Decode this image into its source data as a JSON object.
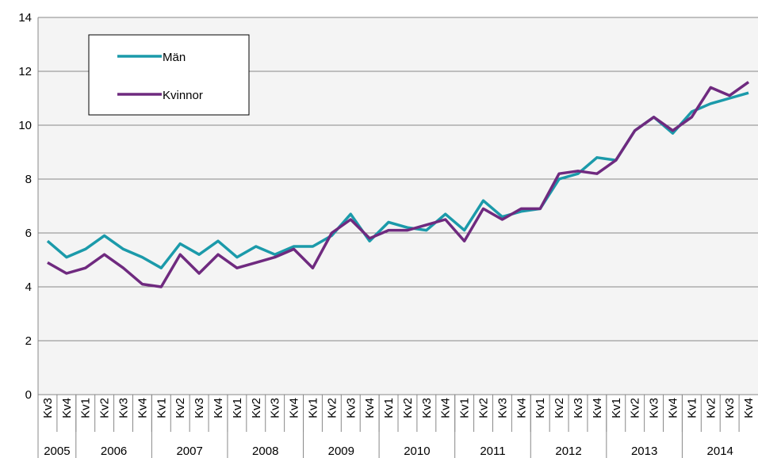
{
  "chart_data": {
    "type": "line",
    "categories": [
      "Kv3",
      "Kv4",
      "Kv1",
      "Kv2",
      "Kv3",
      "Kv4",
      "Kv1",
      "Kv2",
      "Kv3",
      "Kv4",
      "Kv1",
      "Kv2",
      "Kv3",
      "Kv4",
      "Kv1",
      "Kv2",
      "Kv3",
      "Kv4",
      "Kv1",
      "Kv2",
      "Kv3",
      "Kv4",
      "Kv1",
      "Kv2",
      "Kv3",
      "Kv4",
      "Kv1",
      "Kv2",
      "Kv3",
      "Kv4",
      "Kv1",
      "Kv2",
      "Kv3",
      "Kv4",
      "Kv1",
      "Kv2",
      "Kv3",
      "Kv4"
    ],
    "category_groups": [
      {
        "label": "2005",
        "count": 2
      },
      {
        "label": "2006",
        "count": 4
      },
      {
        "label": "2007",
        "count": 4
      },
      {
        "label": "2008",
        "count": 4
      },
      {
        "label": "2009",
        "count": 4
      },
      {
        "label": "2010",
        "count": 4
      },
      {
        "label": "2011",
        "count": 4
      },
      {
        "label": "2012",
        "count": 4
      },
      {
        "label": "2013",
        "count": 4
      },
      {
        "label": "2014",
        "count": 4
      }
    ],
    "series": [
      {
        "name": "Män",
        "color": "#1b9aaa",
        "values": [
          5.7,
          5.1,
          5.4,
          5.9,
          5.4,
          5.1,
          4.7,
          5.6,
          5.2,
          5.7,
          5.1,
          5.5,
          5.2,
          5.5,
          5.5,
          5.9,
          6.7,
          5.7,
          6.4,
          6.2,
          6.1,
          6.7,
          6.1,
          7.2,
          6.6,
          6.8,
          6.9,
          8.0,
          8.2,
          8.8,
          8.7,
          9.8,
          10.3,
          9.7,
          10.5,
          10.8,
          11.0,
          11.2
        ]
      },
      {
        "name": "Kvinnor",
        "color": "#6f2a7f",
        "values": [
          4.9,
          4.5,
          4.7,
          5.2,
          4.7,
          4.1,
          4.0,
          5.2,
          4.5,
          5.2,
          4.7,
          4.9,
          5.1,
          5.4,
          4.7,
          6.0,
          6.5,
          5.8,
          6.1,
          6.1,
          6.3,
          6.5,
          5.7,
          6.9,
          6.5,
          6.9,
          6.9,
          8.2,
          8.3,
          8.2,
          8.7,
          9.8,
          10.3,
          9.8,
          10.3,
          11.4,
          11.1,
          11.6
        ]
      }
    ],
    "ylim": [
      0,
      14
    ],
    "yticks": [
      0,
      2,
      4,
      6,
      8,
      10,
      12,
      14
    ],
    "grid": true
  }
}
